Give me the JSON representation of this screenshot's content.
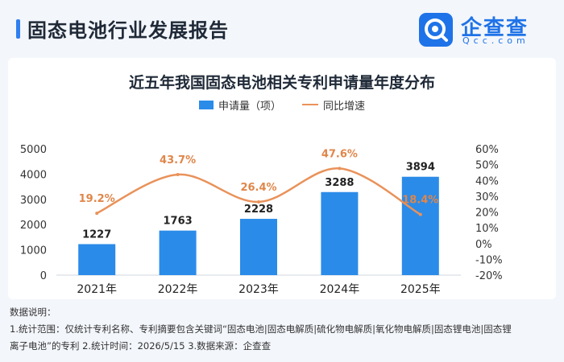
{
  "header": {
    "title": "固态电池行业发展报告"
  },
  "logo": {
    "name": "企查查",
    "domain": "Qcc.com"
  },
  "chart_data": {
    "type": "bar",
    "title": "近五年我国固态电池相关专利申请量年度分布",
    "categories": [
      "2021年",
      "2022年",
      "2023年",
      "2024年",
      "2025年"
    ],
    "series": [
      {
        "name": "申请量（项）",
        "type": "bar",
        "values": [
          1227,
          1763,
          2228,
          3288,
          3894
        ]
      },
      {
        "name": "同比增速",
        "type": "line",
        "values": [
          19.2,
          43.7,
          26.4,
          47.6,
          18.4
        ]
      }
    ],
    "bar_labels": [
      "1227",
      "1763",
      "2228",
      "3288",
      "3894"
    ],
    "line_labels": [
      "19.2%",
      "43.7%",
      "26.4%",
      "47.6%",
      "18.4%"
    ],
    "y_left": {
      "ticks": [
        "0",
        "1000",
        "2000",
        "3000",
        "4000",
        "5000"
      ],
      "range": [
        0,
        5000
      ]
    },
    "y_right": {
      "ticks": [
        "-20%",
        "-10%",
        "0%",
        "10%",
        "20%",
        "30%",
        "40%",
        "50%",
        "60%"
      ],
      "range": [
        -20,
        60
      ]
    },
    "colors": {
      "bar": "#2b8be8",
      "line": "#e9925a",
      "bar_label": "#222222",
      "line_label": "#e0864a"
    },
    "legend_position": "top-center",
    "grid": false
  },
  "notes": {
    "heading": "数据说明：",
    "line1": "1.统计范围：仅统计专利名称、专利摘要包含关键词“固态电池|固态电解质|硫化物电解质|氧化物电解质|固态锂电池|固态锂",
    "line2": "离子电池”的专利    2.统计时间：2026/5/15    3.数据来源：企查查"
  }
}
